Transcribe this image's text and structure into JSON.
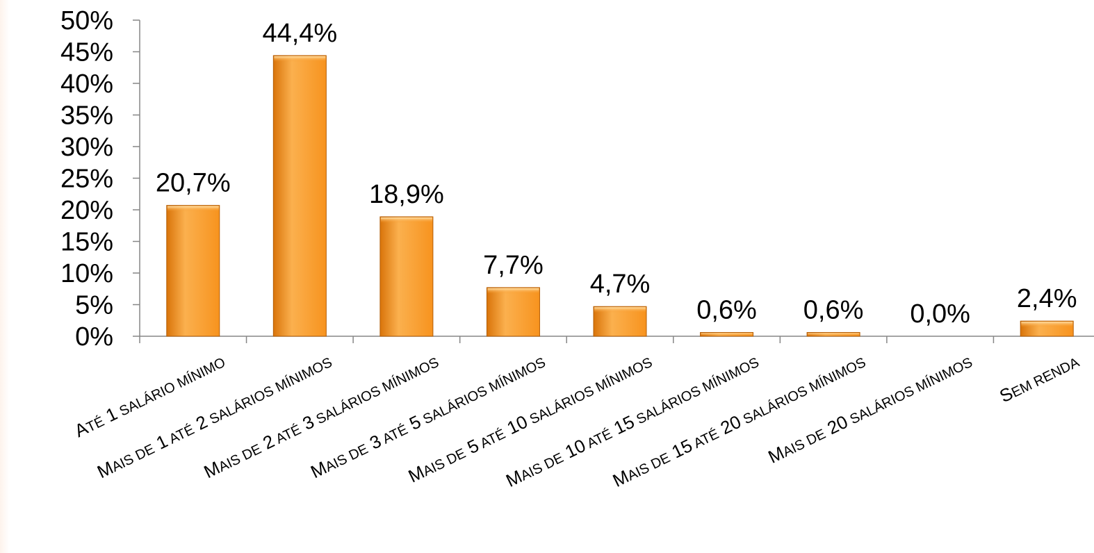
{
  "chart_data": {
    "type": "bar",
    "categories": [
      "Até 1 salário mínimo",
      "Mais de 1 até 2 salários mínimos",
      "Mais de 2 até 3 salários mínimos",
      "Mais de 3 até 5 salários mínimos",
      "Mais de 5 até 10 salários mínimos",
      "Mais de 10 até 15 salários mínimos",
      "Mais de 15 até 20 salários mínimos",
      "Mais de 20 salários mínimos",
      "Sem renda"
    ],
    "values": [
      20.7,
      44.4,
      18.9,
      7.7,
      4.7,
      0.6,
      0.6,
      0.0,
      2.4
    ],
    "data_labels": [
      "20,7%",
      "44,4%",
      "18,9%",
      "7,7%",
      "4,7%",
      "0,6%",
      "0,6%",
      "0,0%",
      "2,4%"
    ],
    "y_ticks": [
      0,
      5,
      10,
      15,
      20,
      25,
      30,
      35,
      40,
      45,
      50
    ],
    "y_tick_labels": [
      "0%",
      "5%",
      "10%",
      "15%",
      "20%",
      "25%",
      "30%",
      "35%",
      "40%",
      "45%",
      "50%"
    ],
    "ylim": [
      0,
      50
    ],
    "title": "",
    "xlabel": "",
    "ylabel": "",
    "grid": false,
    "legend": "none",
    "colors": {
      "bar_fill_light": "#fbb04e",
      "bar_fill": "#f7931e",
      "bar_fill_dark": "#d9740a",
      "bar_edge": "#b35c05",
      "axis": "#868686"
    }
  }
}
